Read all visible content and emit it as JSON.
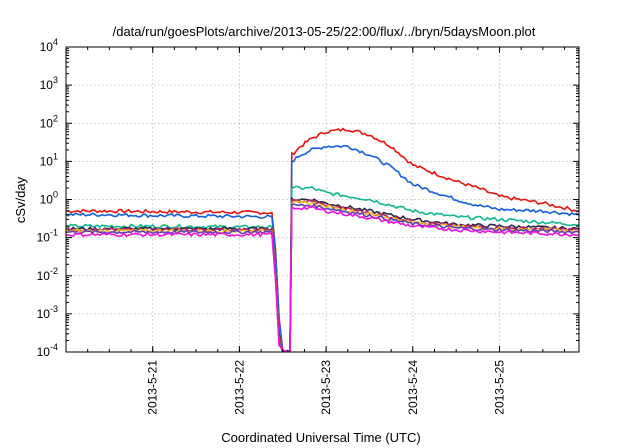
{
  "chart_data": {
    "type": "line",
    "title": "/data/run/goesPlots/archive/2013-05-25/22:00/flux/../bryn/5daysMoon.plot",
    "xlabel": "Coordinated Universal Time (UTC)",
    "ylabel": "cSv/day",
    "yscale": "log",
    "xlim": [
      "2013-05-20 00:00",
      "2013-05-25 22:00"
    ],
    "ylim": [
      0.0001,
      10000
    ],
    "grid": true,
    "legend": "none",
    "x_ticks": [
      "2013-5-21",
      "2013-5-22",
      "2013-5-23",
      "2013-5-24",
      "2013-5-25"
    ],
    "y_ticks": [
      {
        "base": "10",
        "exp": "-4",
        "value": 0.0001
      },
      {
        "base": "10",
        "exp": "-3",
        "value": 0.001
      },
      {
        "base": "10",
        "exp": "-2",
        "value": 0.01
      },
      {
        "base": "10",
        "exp": "-1",
        "value": 0.1
      },
      {
        "base": "10",
        "exp": "0",
        "value": 1
      },
      {
        "base": "10",
        "exp": "1",
        "value": 10
      },
      {
        "base": "10",
        "exp": "2",
        "value": 100
      },
      {
        "base": "10",
        "exp": "3",
        "value": 1000
      },
      {
        "base": "10",
        "exp": "4",
        "value": 10000
      }
    ],
    "series": [
      {
        "color": "#e8140f",
        "points": [
          [
            "2013-05-20 00:00",
            0.5
          ],
          [
            "2013-05-20 12:00",
            0.5
          ],
          [
            "2013-05-21 00:00",
            0.48
          ],
          [
            "2013-05-21 12:00",
            0.47
          ],
          [
            "2013-05-22 00:00",
            0.46
          ],
          [
            "2013-05-22 09:00",
            0.45
          ],
          [
            "2013-05-22 10:00",
            0.05
          ],
          [
            "2013-05-22 11:00",
            0.0008
          ],
          [
            "2013-05-22 12:00",
            0.0001
          ],
          [
            "2013-05-22 14:00",
            0.0001
          ],
          [
            "2013-05-22 14:30",
            15
          ],
          [
            "2013-05-22 17:00",
            25
          ],
          [
            "2013-05-22 20:00",
            40
          ],
          [
            "2013-05-23 00:00",
            60
          ],
          [
            "2013-05-23 06:00",
            70
          ],
          [
            "2013-05-23 12:00",
            50
          ],
          [
            "2013-05-23 18:00",
            25
          ],
          [
            "2013-05-24 00:00",
            8
          ],
          [
            "2013-05-24 12:00",
            3
          ],
          [
            "2013-05-24 18:00",
            2
          ],
          [
            "2013-05-25 00:00",
            1.2
          ],
          [
            "2013-05-25 12:00",
            0.8
          ],
          [
            "2013-05-25 22:00",
            0.5
          ]
        ]
      },
      {
        "color": "#1060e0",
        "points": [
          [
            "2013-05-20 00:00",
            0.4
          ],
          [
            "2013-05-20 12:00",
            0.4
          ],
          [
            "2013-05-21 00:00",
            0.38
          ],
          [
            "2013-05-21 12:00",
            0.37
          ],
          [
            "2013-05-22 00:00",
            0.36
          ],
          [
            "2013-05-22 09:00",
            0.35
          ],
          [
            "2013-05-22 10:00",
            0.04
          ],
          [
            "2013-05-22 11:00",
            0.0007
          ],
          [
            "2013-05-22 12:00",
            0.0001
          ],
          [
            "2013-05-22 14:00",
            0.0001
          ],
          [
            "2013-05-22 14:30",
            10
          ],
          [
            "2013-05-22 17:00",
            15
          ],
          [
            "2013-05-22 20:00",
            20
          ],
          [
            "2013-05-23 00:00",
            25
          ],
          [
            "2013-05-23 06:00",
            25
          ],
          [
            "2013-05-23 12:00",
            15
          ],
          [
            "2013-05-23 18:00",
            7
          ],
          [
            "2013-05-24 00:00",
            2.5
          ],
          [
            "2013-05-24 12:00",
            1
          ],
          [
            "2013-05-24 18:00",
            0.7
          ],
          [
            "2013-05-25 00:00",
            0.55
          ],
          [
            "2013-05-25 12:00",
            0.5
          ],
          [
            "2013-05-25 22:00",
            0.4
          ]
        ]
      },
      {
        "color": "#10b890",
        "points": [
          [
            "2013-05-20 00:00",
            0.2
          ],
          [
            "2013-05-21 00:00",
            0.2
          ],
          [
            "2013-05-22 00:00",
            0.19
          ],
          [
            "2013-05-22 09:00",
            0.19
          ],
          [
            "2013-05-22 10:00",
            0.02
          ],
          [
            "2013-05-22 11:00",
            0.0004
          ],
          [
            "2013-05-22 12:00",
            0.0001
          ],
          [
            "2013-05-22 14:00",
            0.0001
          ],
          [
            "2013-05-22 14:30",
            2.0
          ],
          [
            "2013-05-22 20:00",
            2.0
          ],
          [
            "2013-05-23 00:00",
            1.5
          ],
          [
            "2013-05-23 12:00",
            1.0
          ],
          [
            "2013-05-24 00:00",
            0.5
          ],
          [
            "2013-05-24 12:00",
            0.35
          ],
          [
            "2013-05-25 00:00",
            0.3
          ],
          [
            "2013-05-25 22:00",
            0.22
          ]
        ]
      },
      {
        "color": "#28284a",
        "points": [
          [
            "2013-05-20 00:00",
            0.17
          ],
          [
            "2013-05-21 00:00",
            0.17
          ],
          [
            "2013-05-22 00:00",
            0.17
          ],
          [
            "2013-05-22 09:00",
            0.17
          ],
          [
            "2013-05-22 10:00",
            0.015
          ],
          [
            "2013-05-22 11:00",
            0.0003
          ],
          [
            "2013-05-22 12:00",
            0.0001
          ],
          [
            "2013-05-22 14:00",
            0.0001
          ],
          [
            "2013-05-22 14:30",
            1.0
          ],
          [
            "2013-05-22 20:00",
            1.0
          ],
          [
            "2013-05-23 00:00",
            0.8
          ],
          [
            "2013-05-23 12:00",
            0.5
          ],
          [
            "2013-05-24 00:00",
            0.3
          ],
          [
            "2013-05-24 12:00",
            0.22
          ],
          [
            "2013-05-25 00:00",
            0.2
          ],
          [
            "2013-05-25 22:00",
            0.17
          ]
        ]
      },
      {
        "color": "#c02060",
        "points": [
          [
            "2013-05-20 00:00",
            0.16
          ],
          [
            "2013-05-21 00:00",
            0.16
          ],
          [
            "2013-05-22 00:00",
            0.16
          ],
          [
            "2013-05-22 09:00",
            0.16
          ],
          [
            "2013-05-22 10:00",
            0.012
          ],
          [
            "2013-05-22 11:00",
            0.00025
          ],
          [
            "2013-05-22 12:00",
            0.0001
          ],
          [
            "2013-05-22 14:00",
            0.0001
          ],
          [
            "2013-05-22 14:30",
            0.9
          ],
          [
            "2013-05-22 20:00",
            0.9
          ],
          [
            "2013-05-23 00:00",
            0.7
          ],
          [
            "2013-05-23 12:00",
            0.45
          ],
          [
            "2013-05-24 00:00",
            0.27
          ],
          [
            "2013-05-24 12:00",
            0.2
          ],
          [
            "2013-05-25 00:00",
            0.18
          ],
          [
            "2013-05-25 22:00",
            0.16
          ]
        ]
      },
      {
        "color": "#f0c020",
        "points": [
          [
            "2013-05-20 00:00",
            0.15
          ],
          [
            "2013-05-21 00:00",
            0.15
          ],
          [
            "2013-05-22 00:00",
            0.15
          ],
          [
            "2013-05-22 09:00",
            0.15
          ],
          [
            "2013-05-22 10:00",
            0.01
          ],
          [
            "2013-05-22 11:00",
            0.0002
          ],
          [
            "2013-05-22 12:00",
            0.0001
          ],
          [
            "2013-05-22 14:00",
            0.0001
          ],
          [
            "2013-05-22 14:30",
            0.8
          ],
          [
            "2013-05-22 20:00",
            0.8
          ],
          [
            "2013-05-23 00:00",
            0.65
          ],
          [
            "2013-05-23 12:00",
            0.42
          ],
          [
            "2013-05-24 00:00",
            0.25
          ],
          [
            "2013-05-24 12:00",
            0.19
          ],
          [
            "2013-05-25 00:00",
            0.17
          ],
          [
            "2013-05-25 22:00",
            0.15
          ]
        ]
      },
      {
        "color": "#6040c0",
        "points": [
          [
            "2013-05-20 00:00",
            0.14
          ],
          [
            "2013-05-21 00:00",
            0.14
          ],
          [
            "2013-05-22 00:00",
            0.14
          ],
          [
            "2013-05-22 09:00",
            0.14
          ],
          [
            "2013-05-22 10:00",
            0.009
          ],
          [
            "2013-05-22 11:00",
            0.00018
          ],
          [
            "2013-05-22 12:00",
            0.0001
          ],
          [
            "2013-05-22 14:00",
            0.0001
          ],
          [
            "2013-05-22 14:30",
            0.7
          ],
          [
            "2013-05-22 20:00",
            0.7
          ],
          [
            "2013-05-23 00:00",
            0.6
          ],
          [
            "2013-05-23 12:00",
            0.38
          ],
          [
            "2013-05-24 00:00",
            0.23
          ],
          [
            "2013-05-24 12:00",
            0.18
          ],
          [
            "2013-05-25 00:00",
            0.16
          ],
          [
            "2013-05-25 22:00",
            0.14
          ]
        ]
      },
      {
        "color": "#f010e0",
        "points": [
          [
            "2013-05-20 00:00",
            0.12
          ],
          [
            "2013-05-21 00:00",
            0.12
          ],
          [
            "2013-05-22 00:00",
            0.12
          ],
          [
            "2013-05-22 09:00",
            0.12
          ],
          [
            "2013-05-22 10:00",
            0.008
          ],
          [
            "2013-05-22 11:00",
            0.00015
          ],
          [
            "2013-05-22 12:00",
            0.0001
          ],
          [
            "2013-05-22 14:00",
            0.0001
          ],
          [
            "2013-05-22 14:30",
            0.6
          ],
          [
            "2013-05-22 20:00",
            0.6
          ],
          [
            "2013-05-23 00:00",
            0.5
          ],
          [
            "2013-05-23 12:00",
            0.33
          ],
          [
            "2013-05-24 00:00",
            0.2
          ],
          [
            "2013-05-24 12:00",
            0.16
          ],
          [
            "2013-05-25 00:00",
            0.14
          ],
          [
            "2013-05-25 22:00",
            0.12
          ]
        ]
      }
    ]
  }
}
